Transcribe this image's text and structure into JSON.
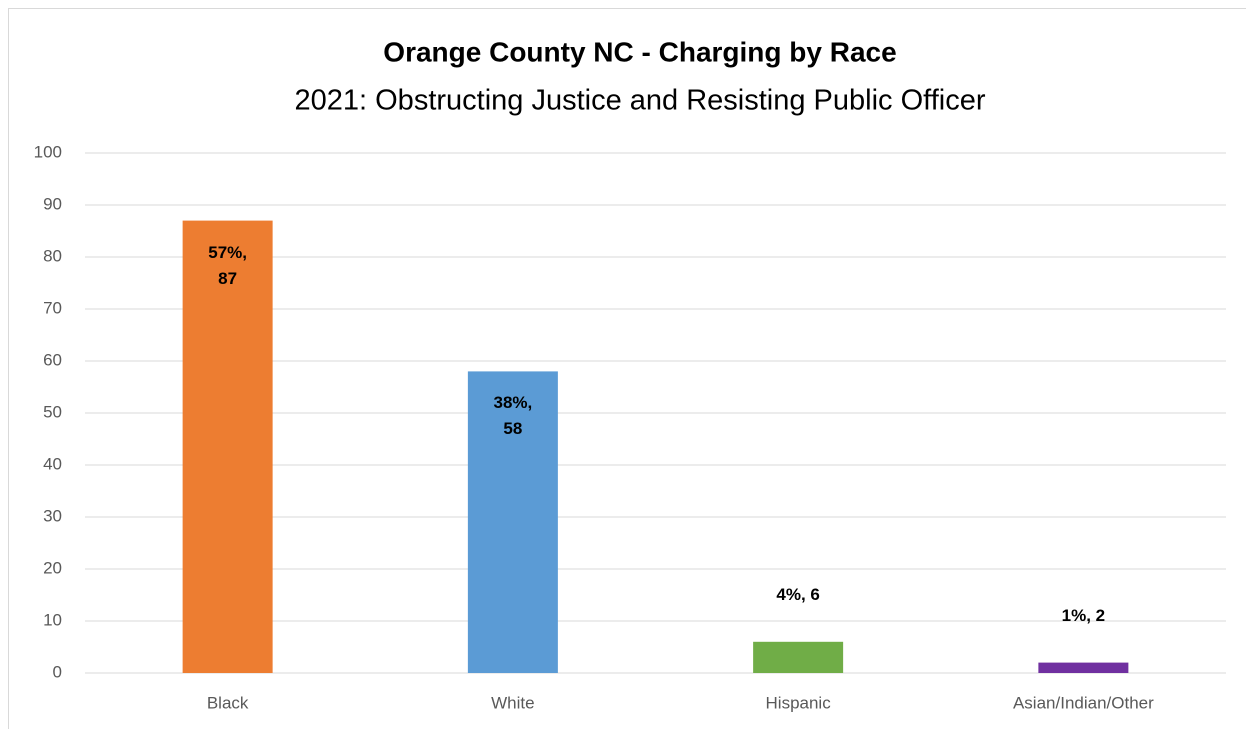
{
  "chart_data": {
    "type": "bar",
    "title": "Orange County NC - Charging by Race",
    "subtitle": "2021: Obstructing Justice and Resisting Public Officer",
    "categories": [
      "Black",
      "White",
      "Hispanic",
      "Asian/Indian/Other"
    ],
    "values": [
      87,
      58,
      6,
      2
    ],
    "value_labels": [
      "57%, 87",
      "38%, 58",
      "4%, 6",
      "1%, 2"
    ],
    "colors": [
      "#ed7d31",
      "#5b9bd5",
      "#70ad47",
      "#7030a0"
    ],
    "ylim": [
      0,
      100
    ],
    "yticks": [
      0,
      10,
      20,
      30,
      40,
      50,
      60,
      70,
      80,
      90,
      100
    ],
    "grid": true
  }
}
